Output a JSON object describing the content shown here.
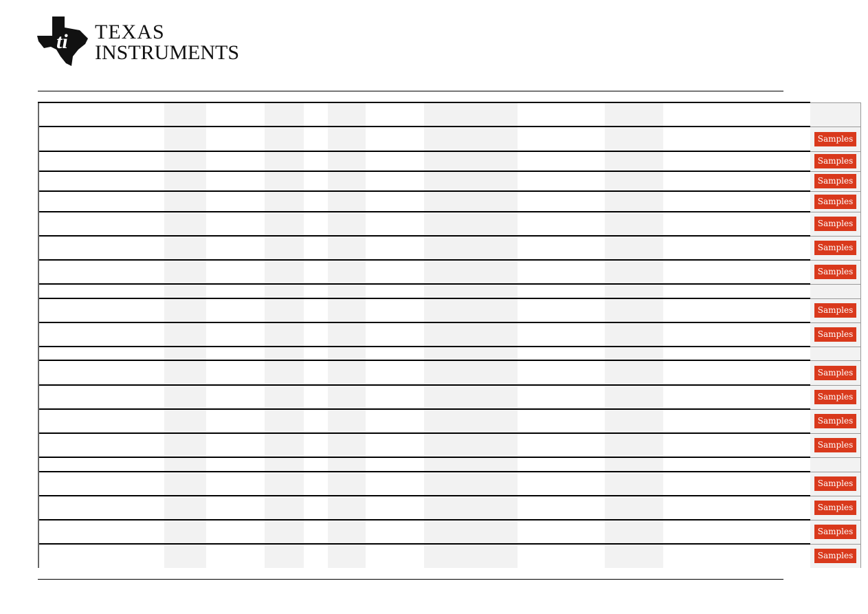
{
  "logo": {
    "line1": "TEXAS",
    "line2": "INSTRUMENTS",
    "brand_color": "#111111"
  },
  "table": {
    "sample_button_label": "Samples",
    "button_color": "#d9391c",
    "rows": [
      {
        "samples": false
      },
      {
        "samples": true
      },
      {
        "samples": true
      },
      {
        "samples": true
      },
      {
        "samples": true
      },
      {
        "samples": true
      },
      {
        "samples": true
      },
      {
        "samples": true
      },
      {
        "samples": false
      },
      {
        "samples": true
      },
      {
        "samples": true
      },
      {
        "samples": false
      },
      {
        "samples": true
      },
      {
        "samples": true
      },
      {
        "samples": true
      },
      {
        "samples": true
      },
      {
        "samples": false
      },
      {
        "samples": true
      },
      {
        "samples": true
      },
      {
        "samples": true
      },
      {
        "samples": true
      }
    ]
  }
}
